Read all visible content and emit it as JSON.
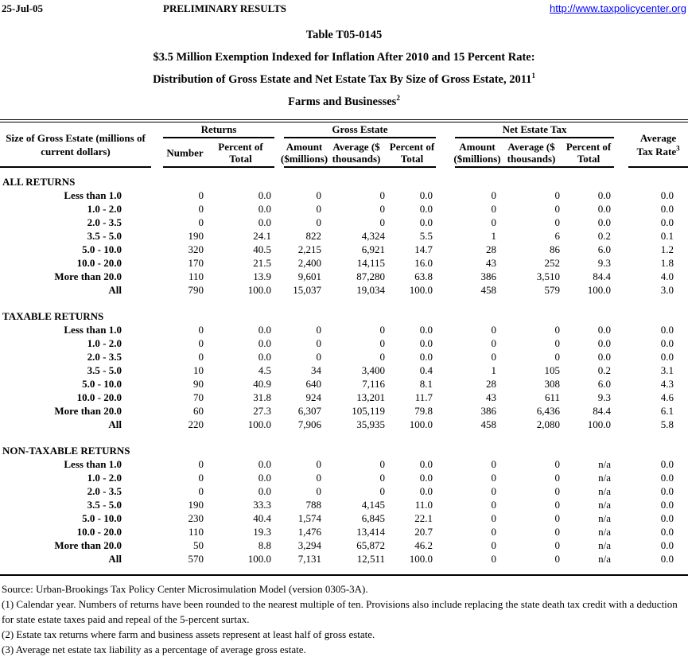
{
  "page_header": {
    "date": "25-Jul-05",
    "status": "PRELIMINARY RESULTS",
    "url": "http://www.taxpolicycenter.org",
    "link_color": "#0000FF"
  },
  "title": {
    "line1": "Table T05-0145",
    "line2": "$3.5 Million Exemption Indexed for Inflation After 2010 and 15 Percent Rate:",
    "line3": "Distribution of Gross Estate and Net Estate Tax By Size of Gross Estate, 2011",
    "line3_sup": "1",
    "line4": "Farms and Businesses",
    "line4_sup": "2"
  },
  "table": {
    "columns": {
      "size": "Size of Gross Estate (millions of\ncurrent dollars)",
      "groups": [
        {
          "label": "Returns",
          "span": 2
        },
        {
          "label": "Gross Estate",
          "span": 3
        },
        {
          "label": "Net Estate Tax",
          "span": 3
        }
      ],
      "sub": [
        "Number",
        "Percent of\nTotal",
        "Amount\n($millions)",
        "Average ($\nthousands)",
        "Percent of\nTotal",
        "Amount\n($millions)",
        "Average ($\nthousands)",
        "Percent of\nTotal"
      ],
      "avg_rate": "Average\nTax Rate",
      "avg_rate_sup": "3"
    },
    "sections": [
      {
        "name": "ALL RETURNS",
        "rows": [
          {
            "label": "Less than 1.0",
            "values": [
              "0",
              "0.0",
              "0",
              "0",
              "0.0",
              "0",
              "0",
              "0.0",
              "0.0"
            ]
          },
          {
            "label": "1.0 - 2.0",
            "values": [
              "0",
              "0.0",
              "0",
              "0",
              "0.0",
              "0",
              "0",
              "0.0",
              "0.0"
            ]
          },
          {
            "label": "2.0 - 3.5",
            "values": [
              "0",
              "0.0",
              "0",
              "0",
              "0.0",
              "0",
              "0",
              "0.0",
              "0.0"
            ]
          },
          {
            "label": "3.5 - 5.0",
            "values": [
              "190",
              "24.1",
              "822",
              "4,324",
              "5.5",
              "1",
              "6",
              "0.2",
              "0.1"
            ]
          },
          {
            "label": "5.0 - 10.0",
            "values": [
              "320",
              "40.5",
              "2,215",
              "6,921",
              "14.7",
              "28",
              "86",
              "6.0",
              "1.2"
            ]
          },
          {
            "label": "10.0 - 20.0",
            "values": [
              "170",
              "21.5",
              "2,400",
              "14,115",
              "16.0",
              "43",
              "252",
              "9.3",
              "1.8"
            ]
          },
          {
            "label": "More than 20.0",
            "values": [
              "110",
              "13.9",
              "9,601",
              "87,280",
              "63.8",
              "386",
              "3,510",
              "84.4",
              "4.0"
            ]
          },
          {
            "label": "All",
            "values": [
              "790",
              "100.0",
              "15,037",
              "19,034",
              "100.0",
              "458",
              "579",
              "100.0",
              "3.0"
            ]
          }
        ]
      },
      {
        "name": "TAXABLE RETURNS",
        "rows": [
          {
            "label": "Less than 1.0",
            "values": [
              "0",
              "0.0",
              "0",
              "0",
              "0.0",
              "0",
              "0",
              "0.0",
              "0.0"
            ]
          },
          {
            "label": "1.0 - 2.0",
            "values": [
              "0",
              "0.0",
              "0",
              "0",
              "0.0",
              "0",
              "0",
              "0.0",
              "0.0"
            ]
          },
          {
            "label": "2.0 - 3.5",
            "values": [
              "0",
              "0.0",
              "0",
              "0",
              "0.0",
              "0",
              "0",
              "0.0",
              "0.0"
            ]
          },
          {
            "label": "3.5 - 5.0",
            "values": [
              "10",
              "4.5",
              "34",
              "3,400",
              "0.4",
              "1",
              "105",
              "0.2",
              "3.1"
            ]
          },
          {
            "label": "5.0 - 10.0",
            "values": [
              "90",
              "40.9",
              "640",
              "7,116",
              "8.1",
              "28",
              "308",
              "6.0",
              "4.3"
            ]
          },
          {
            "label": "10.0 - 20.0",
            "values": [
              "70",
              "31.8",
              "924",
              "13,201",
              "11.7",
              "43",
              "611",
              "9.3",
              "4.6"
            ]
          },
          {
            "label": "More than 20.0",
            "values": [
              "60",
              "27.3",
              "6,307",
              "105,119",
              "79.8",
              "386",
              "6,436",
              "84.4",
              "6.1"
            ]
          },
          {
            "label": "All",
            "values": [
              "220",
              "100.0",
              "7,906",
              "35,935",
              "100.0",
              "458",
              "2,080",
              "100.0",
              "5.8"
            ]
          }
        ]
      },
      {
        "name": "NON-TAXABLE RETURNS",
        "rows": [
          {
            "label": "Less than 1.0",
            "values": [
              "0",
              "0.0",
              "0",
              "0",
              "0.0",
              "0",
              "0",
              "n/a",
              "0.0"
            ]
          },
          {
            "label": "1.0 - 2.0",
            "values": [
              "0",
              "0.0",
              "0",
              "0",
              "0.0",
              "0",
              "0",
              "n/a",
              "0.0"
            ]
          },
          {
            "label": "2.0 - 3.5",
            "values": [
              "0",
              "0.0",
              "0",
              "0",
              "0.0",
              "0",
              "0",
              "n/a",
              "0.0"
            ]
          },
          {
            "label": "3.5 - 5.0",
            "values": [
              "190",
              "33.3",
              "788",
              "4,145",
              "11.0",
              "0",
              "0",
              "n/a",
              "0.0"
            ]
          },
          {
            "label": "5.0 - 10.0",
            "values": [
              "230",
              "40.4",
              "1,574",
              "6,845",
              "22.1",
              "0",
              "0",
              "n/a",
              "0.0"
            ]
          },
          {
            "label": "10.0 - 20.0",
            "values": [
              "110",
              "19.3",
              "1,476",
              "13,414",
              "20.7",
              "0",
              "0",
              "n/a",
              "0.0"
            ]
          },
          {
            "label": "More than 20.0",
            "values": [
              "50",
              "8.8",
              "3,294",
              "65,872",
              "46.2",
              "0",
              "0",
              "n/a",
              "0.0"
            ]
          },
          {
            "label": "All",
            "values": [
              "570",
              "100.0",
              "7,131",
              "12,511",
              "100.0",
              "0",
              "0",
              "n/a",
              "0.0"
            ]
          }
        ]
      }
    ]
  },
  "footnotes": {
    "source": "Source: Urban-Brookings Tax Policy Center Microsimulation Model (version 0305-3A).",
    "note1": "(1) Calendar year. Numbers of returns have been rounded to the nearest multiple of ten. Provisions also include replacing the state death tax credit with a deduction for state estate taxes paid and repeal of the 5-percent surtax.",
    "note2": "(2) Estate tax returns where farm and business assets represent at least half of gross estate.",
    "note3": "(3) Average net estate tax liability as a percentage of average gross estate."
  }
}
